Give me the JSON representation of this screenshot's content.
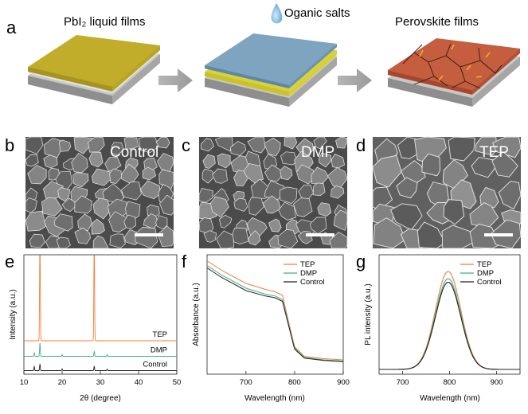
{
  "schematic": {
    "panel": "a",
    "titles": [
      "PbI₂ liquid films",
      "Oganic salts",
      "Perovskite films"
    ]
  },
  "sem": {
    "panels": [
      {
        "label": "b",
        "name": "Control"
      },
      {
        "label": "c",
        "name": "DMP"
      },
      {
        "label": "d",
        "name": "TEP"
      }
    ]
  },
  "colors": {
    "TEP": "#f07f3c",
    "DMP": "#3fae8c",
    "Control": "#222222"
  },
  "chart_data": [
    {
      "panel": "e",
      "type": "line",
      "xlabel": "2θ (degree)",
      "ylabel": "Intensity (a.u.)",
      "xlim": [
        10,
        50
      ],
      "xticks": [
        10,
        20,
        30,
        40,
        50
      ],
      "series": [
        {
          "name": "TEP",
          "baseline": 0.28,
          "peaks": [
            [
              14.2,
              0.95
            ],
            [
              28.4,
              0.95
            ]
          ]
        },
        {
          "name": "DMP",
          "baseline": 0.15,
          "peaks": [
            [
              12.7,
              0.03
            ],
            [
              14.2,
              0.11
            ],
            [
              20.0,
              0.015
            ],
            [
              28.4,
              0.04
            ],
            [
              31.8,
              0.015
            ]
          ]
        },
        {
          "name": "Control",
          "baseline": 0.03,
          "peaks": [
            [
              12.7,
              0.035
            ],
            [
              14.2,
              0.055
            ],
            [
              20.0,
              0.015
            ],
            [
              28.4,
              0.035
            ],
            [
              31.8,
              0.012
            ]
          ]
        }
      ]
    },
    {
      "panel": "f",
      "type": "line",
      "xlabel": "Wavelength (nm)",
      "ylabel": "Absorbance (a.u.)",
      "xlim": [
        620,
        900
      ],
      "xticks": [
        700,
        800,
        900
      ],
      "legend": "top-right",
      "series": [
        {
          "name": "TEP",
          "points": [
            [
              620,
              0.95
            ],
            [
              650,
              0.87
            ],
            [
              700,
              0.76
            ],
            [
              740,
              0.71
            ],
            [
              760,
              0.69
            ],
            [
              775,
              0.66
            ],
            [
              790,
              0.4
            ],
            [
              800,
              0.23
            ],
            [
              820,
              0.15
            ],
            [
              860,
              0.13
            ],
            [
              900,
              0.12
            ]
          ]
        },
        {
          "name": "DMP",
          "points": [
            [
              620,
              0.91
            ],
            [
              650,
              0.83
            ],
            [
              700,
              0.72
            ],
            [
              740,
              0.67
            ],
            [
              760,
              0.655
            ],
            [
              775,
              0.625
            ],
            [
              790,
              0.38
            ],
            [
              800,
              0.22
            ],
            [
              820,
              0.14
            ],
            [
              860,
              0.12
            ],
            [
              900,
              0.11
            ]
          ]
        },
        {
          "name": "Control",
          "points": [
            [
              620,
              0.89
            ],
            [
              650,
              0.81
            ],
            [
              700,
              0.7
            ],
            [
              740,
              0.655
            ],
            [
              760,
              0.64
            ],
            [
              775,
              0.61
            ],
            [
              790,
              0.37
            ],
            [
              800,
              0.21
            ],
            [
              820,
              0.135
            ],
            [
              860,
              0.115
            ],
            [
              900,
              0.105
            ]
          ]
        }
      ]
    },
    {
      "panel": "g",
      "type": "line",
      "xlabel": "Wavelength (nm)",
      "ylabel": "PL intensity (a.u.)",
      "xlim": [
        650,
        950
      ],
      "xticks": [
        700,
        800,
        900
      ],
      "legend": "top-right",
      "series": [
        {
          "name": "TEP",
          "center": 797,
          "amplitude": 0.82,
          "width": 27
        },
        {
          "name": "DMP",
          "center": 797,
          "amplitude": 0.76,
          "width": 27
        },
        {
          "name": "Control",
          "center": 797,
          "amplitude": 0.73,
          "width": 27
        }
      ]
    }
  ]
}
